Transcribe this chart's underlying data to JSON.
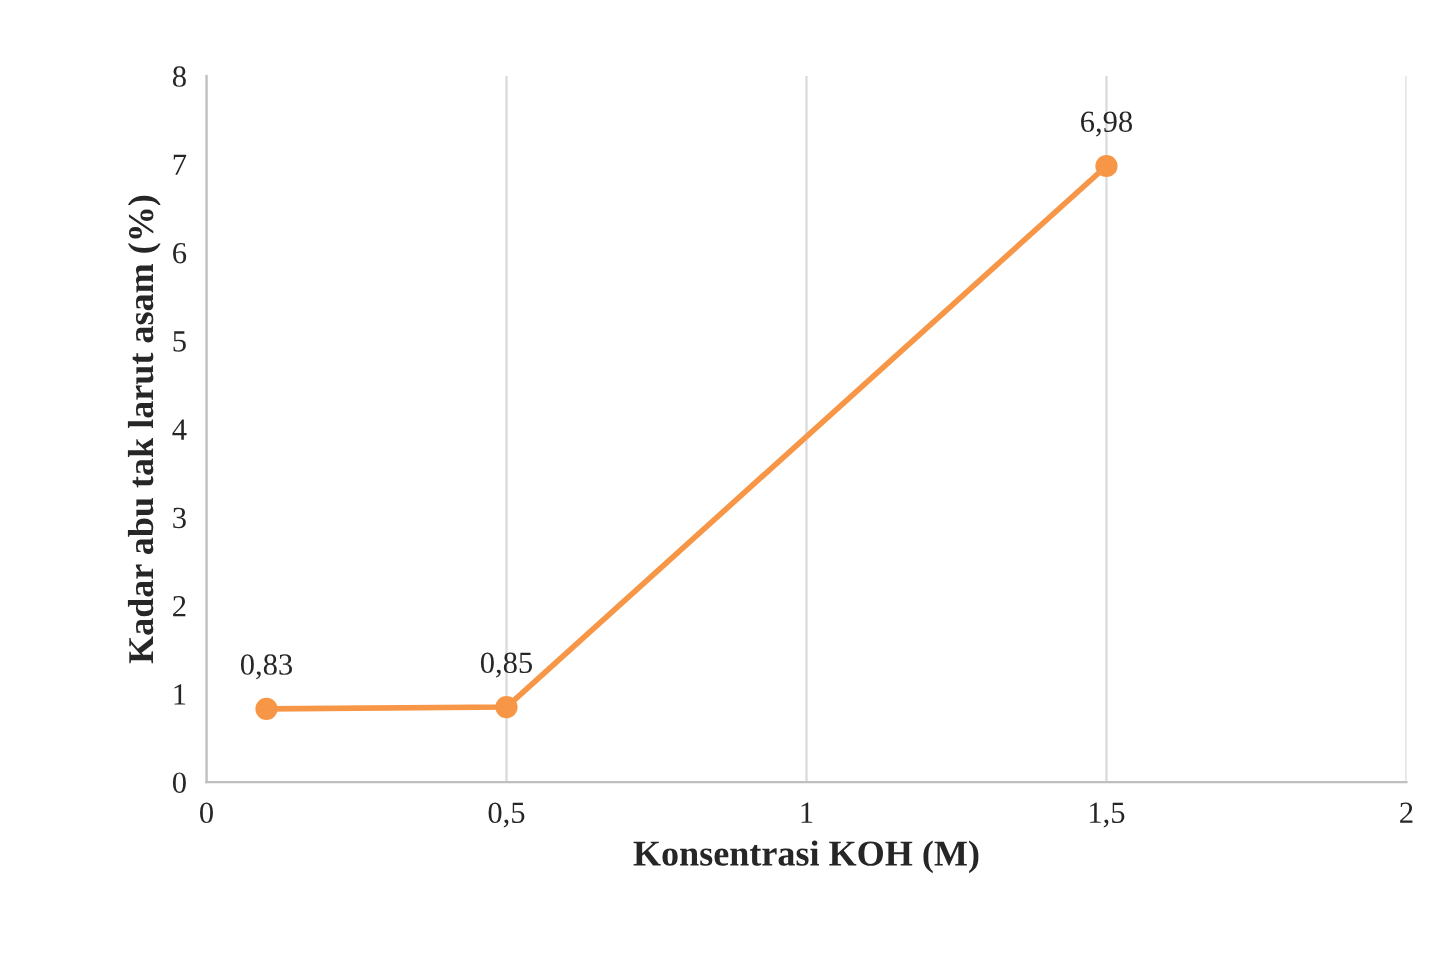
{
  "chart_data": {
    "type": "line",
    "xlabel": "Konsentrasi KOH (M)",
    "ylabel": "Kadar abu tak larut asam (%)",
    "x": [
      0.1,
      0.5,
      1.5
    ],
    "series": [
      {
        "color": "#f79646",
        "values": [
          0.83,
          0.85,
          6.98
        ],
        "value_labels": [
          "0,83",
          "0,85",
          "6,98"
        ]
      }
    ],
    "xlim": [
      0,
      2
    ],
    "xticks": [
      0,
      {
        "value": 0.5,
        "label": "0,5"
      },
      1,
      {
        "value": 1.5,
        "label": "1,5"
      },
      2
    ],
    "ylim": [
      0,
      8
    ],
    "yticks": [
      0,
      1,
      2,
      3,
      4,
      5,
      6,
      7,
      8
    ],
    "grid": "x",
    "marker": "circle",
    "line_style": "solid"
  }
}
